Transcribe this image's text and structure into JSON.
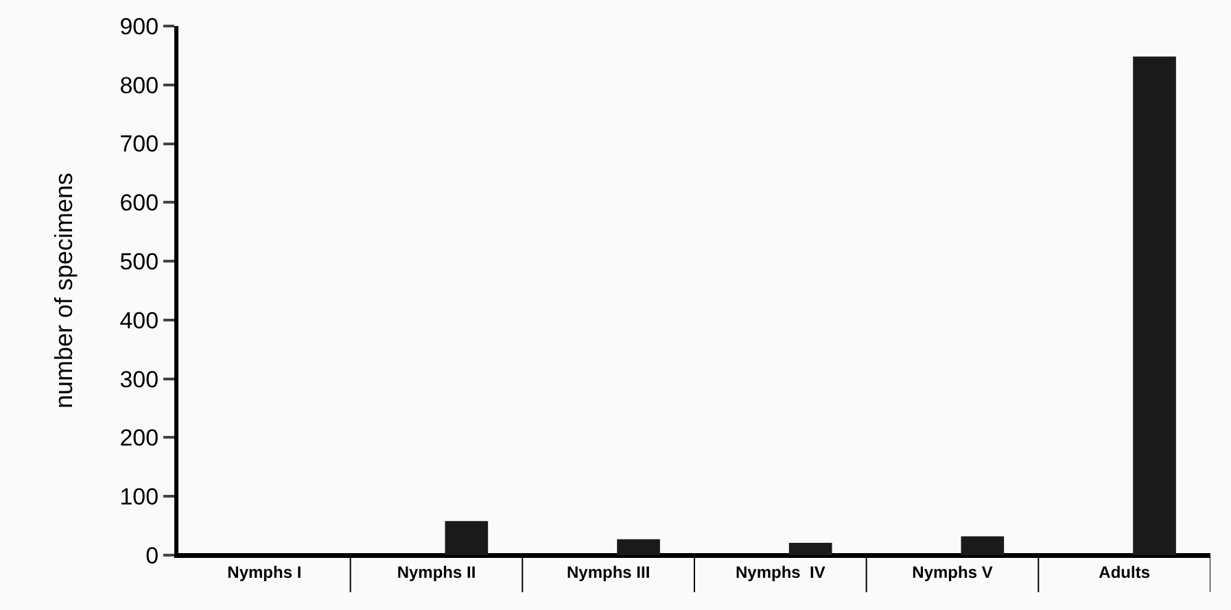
{
  "chart_data": {
    "type": "bar",
    "ylabel": "number of specimens",
    "categories": [
      "Nymphs I",
      "Nymphs II",
      "Nymphs III",
      "Nymphs  IV",
      "Nymphs V",
      "Adults"
    ],
    "values": [
      0,
      58,
      27,
      21,
      32,
      848
    ],
    "color": "#1a1a1a",
    "ylim": [
      0,
      900
    ],
    "yticks": [
      0,
      100,
      200,
      300,
      400,
      500,
      600,
      700,
      800,
      900
    ]
  }
}
